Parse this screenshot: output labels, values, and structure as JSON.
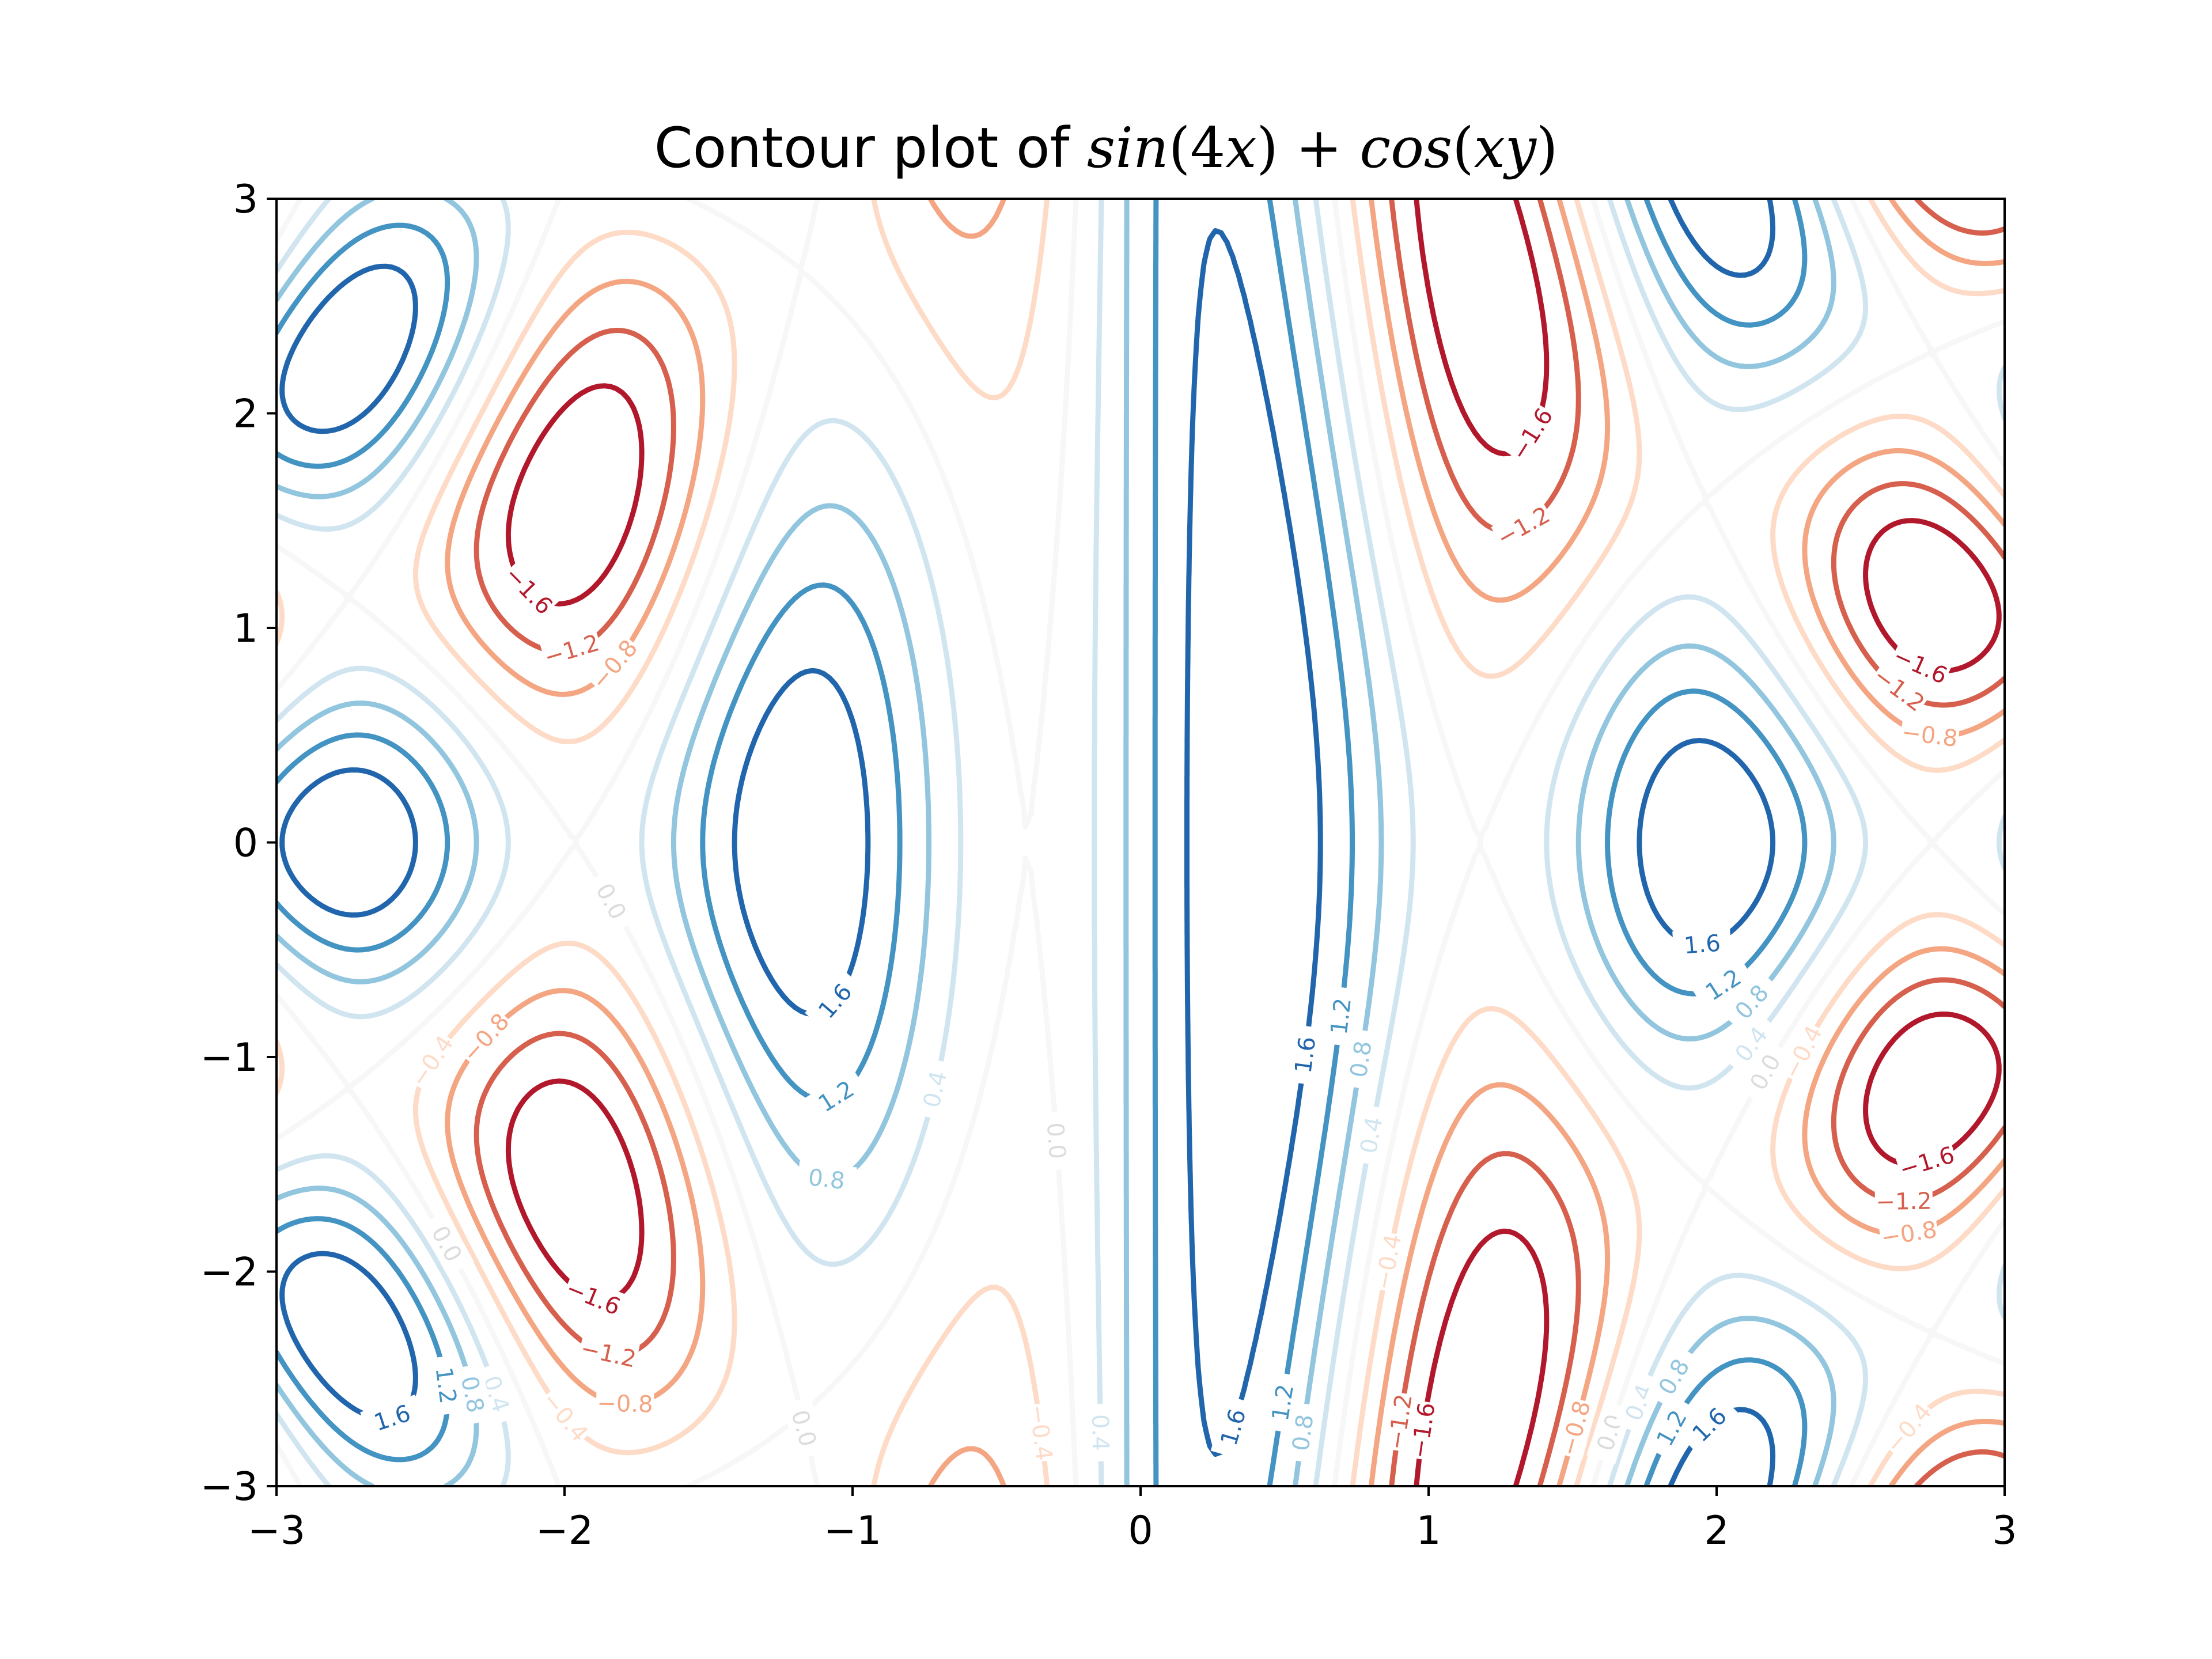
{
  "chart_data": {
    "type": "contour",
    "title": "Contour plot of sin(4x) + cos(xy)",
    "title_parts": {
      "prefix": "Contour plot of ",
      "f1": "sin",
      "arg1": "(4",
      "var1": "x",
      "close1": ")",
      "op": " + ",
      "f2": "cos",
      "arg2_open": "(",
      "var2": "xy",
      "arg2_close": ")"
    },
    "function": "sin(4x) + cos(xy)",
    "xlabel": "",
    "ylabel": "",
    "xlim": [
      -3,
      3
    ],
    "ylim": [
      -3,
      3
    ],
    "xticks": [
      -3,
      -2,
      -1,
      0,
      1,
      2,
      3
    ],
    "yticks": [
      -3,
      -2,
      -1,
      0,
      1,
      2,
      3
    ],
    "xtick_labels": [
      "−3",
      "−2",
      "−1",
      "0",
      "1",
      "2",
      "3"
    ],
    "ytick_labels": [
      "−3",
      "−2",
      "−1",
      "0",
      "1",
      "2",
      "3"
    ],
    "levels": [
      -1.6,
      -1.2,
      -0.8,
      -0.4,
      0.0,
      0.4,
      0.8,
      1.2,
      1.6
    ],
    "level_labels": [
      "−1.6",
      "−1.2",
      "−0.8",
      "−0.4",
      "0.0",
      "0.4",
      "0.8",
      "1.2",
      "1.6"
    ],
    "level_colors": [
      "#b2182b",
      "#d6604d",
      "#f4a582",
      "#fddbc7",
      "#f7f7f7",
      "#d1e5f0",
      "#92c5de",
      "#4393c3",
      "#2166ac"
    ],
    "colormap": "RdBu",
    "grid": false,
    "legend": "none"
  }
}
